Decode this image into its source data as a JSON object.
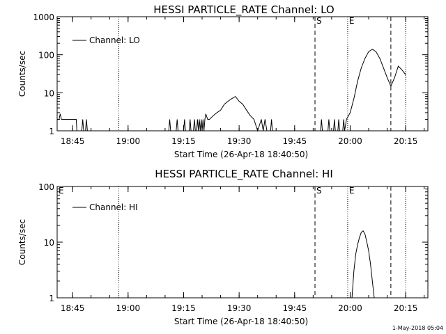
{
  "footer_date": "1-May-2018 05:04",
  "chart_data": [
    {
      "type": "line",
      "title": "HESSI PARTICLE_RATE Channel: LO",
      "xlabel": "Start Time (26-Apr-18 18:40:50)",
      "ylabel": "Counts/sec",
      "y_scale": "log",
      "ylim": [
        1,
        1000
      ],
      "y_ticks": [
        "1",
        "10",
        "100",
        "1000"
      ],
      "x_ticks": [
        "18:45",
        "19:00",
        "19:15",
        "19:30",
        "19:45",
        "20:00",
        "20:15"
      ],
      "x_range": [
        "18:40:50",
        "20:21:00"
      ],
      "legend": "Channel: LO",
      "legend_position": "top-left",
      "markers": [
        {
          "label": "",
          "time": "18:40:50",
          "style": "solid"
        },
        {
          "label": "",
          "time": "18:57:30",
          "style": "dotted"
        },
        {
          "label": "S",
          "time": "19:50:30",
          "style": "dashed"
        },
        {
          "label": "E",
          "time": "19:59:20",
          "style": "dotted"
        },
        {
          "label": "",
          "time": "20:11:00",
          "style": "dashed"
        },
        {
          "label": "",
          "time": "20:15:00",
          "style": "dotted"
        }
      ],
      "series": [
        {
          "name": "Channel: LO",
          "points": [
            [
              "18:40:50",
              2
            ],
            [
              "18:41:20",
              2
            ],
            [
              "18:41:40",
              2.8
            ],
            [
              "18:42:00",
              2
            ],
            [
              "18:46:00",
              2
            ],
            [
              "18:46:10",
              1
            ],
            [
              "18:47:30",
              1
            ],
            [
              "18:47:45",
              2
            ],
            [
              "18:48:00",
              1
            ],
            [
              "18:48:30",
              1
            ],
            [
              "18:48:45",
              2
            ],
            [
              "18:49:00",
              1
            ],
            [
              "19:11:00",
              1
            ],
            [
              "19:11:15",
              2
            ],
            [
              "19:11:30",
              1
            ],
            [
              "19:13:00",
              1
            ],
            [
              "19:13:15",
              2
            ],
            [
              "19:13:30",
              1
            ],
            [
              "19:15:00",
              1
            ],
            [
              "19:15:15",
              2
            ],
            [
              "19:15:30",
              1
            ],
            [
              "19:16:30",
              1
            ],
            [
              "19:16:45",
              2
            ],
            [
              "19:17:00",
              1
            ],
            [
              "19:17:40",
              1
            ],
            [
              "19:17:55",
              2
            ],
            [
              "19:18:10",
              1
            ],
            [
              "19:18:30",
              1
            ],
            [
              "19:18:45",
              2
            ],
            [
              "19:19:00",
              1
            ],
            [
              "19:19:15",
              2
            ],
            [
              "19:19:30",
              1
            ],
            [
              "19:19:45",
              2
            ],
            [
              "19:20:00",
              1
            ],
            [
              "19:20:15",
              2
            ],
            [
              "19:20:30",
              1
            ],
            [
              "19:20:45",
              2
            ],
            [
              "19:21:00",
              2.8
            ],
            [
              "19:21:30",
              2
            ],
            [
              "19:22:00",
              2
            ],
            [
              "19:23:00",
              2.5
            ],
            [
              "19:24:00",
              3
            ],
            [
              "19:25:00",
              3.5
            ],
            [
              "19:26:00",
              5
            ],
            [
              "19:27:00",
              6
            ],
            [
              "19:28:00",
              7
            ],
            [
              "19:29:00",
              8
            ],
            [
              "19:30:00",
              6
            ],
            [
              "19:31:00",
              5
            ],
            [
              "19:32:00",
              3.5
            ],
            [
              "19:33:00",
              2.5
            ],
            [
              "19:34:00",
              2
            ],
            [
              "19:35:00",
              1
            ],
            [
              "19:36:00",
              2
            ],
            [
              "19:36:30",
              1
            ],
            [
              "19:37:00",
              2
            ],
            [
              "19:37:30",
              1
            ],
            [
              "19:38:30",
              1
            ],
            [
              "19:38:45",
              2
            ],
            [
              "19:39:00",
              1
            ],
            [
              "19:51:30",
              1
            ],
            [
              "19:52:00",
              1
            ],
            [
              "19:52:15",
              2
            ],
            [
              "19:52:30",
              1
            ],
            [
              "19:54:00",
              1
            ],
            [
              "19:54:15",
              2
            ],
            [
              "19:54:30",
              1
            ],
            [
              "19:55:30",
              1
            ],
            [
              "19:55:45",
              2
            ],
            [
              "19:56:00",
              1
            ],
            [
              "19:56:40",
              1
            ],
            [
              "19:56:55",
              2
            ],
            [
              "19:57:10",
              1
            ],
            [
              "19:58:00",
              1
            ],
            [
              "19:58:15",
              2
            ],
            [
              "19:58:30",
              1
            ],
            [
              "19:59:00",
              2
            ],
            [
              "20:00:00",
              3
            ],
            [
              "20:01:00",
              7
            ],
            [
              "20:02:00",
              20
            ],
            [
              "20:03:00",
              45
            ],
            [
              "20:04:00",
              80
            ],
            [
              "20:05:00",
              120
            ],
            [
              "20:06:00",
              140
            ],
            [
              "20:07:00",
              120
            ],
            [
              "20:08:00",
              80
            ],
            [
              "20:09:00",
              45
            ],
            [
              "20:10:00",
              25
            ],
            [
              "20:11:00",
              15
            ],
            [
              "20:12:00",
              25
            ],
            [
              "20:13:00",
              50
            ],
            [
              "20:14:00",
              40
            ],
            [
              "20:15:00",
              30
            ]
          ]
        }
      ]
    },
    {
      "type": "line",
      "title": "HESSI PARTICLE_RATE Channel: HI",
      "xlabel": "Start Time (26-Apr-18 18:40:50)",
      "ylabel": "Counts/sec",
      "y_scale": "log",
      "ylim": [
        1,
        100
      ],
      "y_ticks": [
        "1",
        "10",
        "100"
      ],
      "x_ticks": [
        "18:45",
        "19:00",
        "19:15",
        "19:30",
        "19:45",
        "20:00",
        "20:15"
      ],
      "x_range": [
        "18:40:50",
        "20:21:00"
      ],
      "legend": "Channel: HI",
      "legend_position": "top-left",
      "markers": [
        {
          "label": "E",
          "time": "18:40:50",
          "style": "solid"
        },
        {
          "label": "",
          "time": "18:57:30",
          "style": "dotted"
        },
        {
          "label": "S",
          "time": "19:50:30",
          "style": "dashed"
        },
        {
          "label": "E",
          "time": "19:59:20",
          "style": "dotted"
        },
        {
          "label": "",
          "time": "20:11:00",
          "style": "dashed"
        },
        {
          "label": "",
          "time": "20:15:00",
          "style": "dotted"
        }
      ],
      "series": [
        {
          "name": "Channel: HI",
          "points": [
            [
              "20:00:30",
              1
            ],
            [
              "20:01:00",
              3
            ],
            [
              "20:01:30",
              6
            ],
            [
              "20:02:00",
              9
            ],
            [
              "20:02:30",
              12
            ],
            [
              "20:03:00",
              15
            ],
            [
              "20:03:30",
              16
            ],
            [
              "20:04:00",
              14
            ],
            [
              "20:04:30",
              10
            ],
            [
              "20:05:00",
              7
            ],
            [
              "20:05:30",
              4
            ],
            [
              "20:06:00",
              2
            ],
            [
              "20:06:30",
              1
            ]
          ]
        }
      ]
    }
  ]
}
